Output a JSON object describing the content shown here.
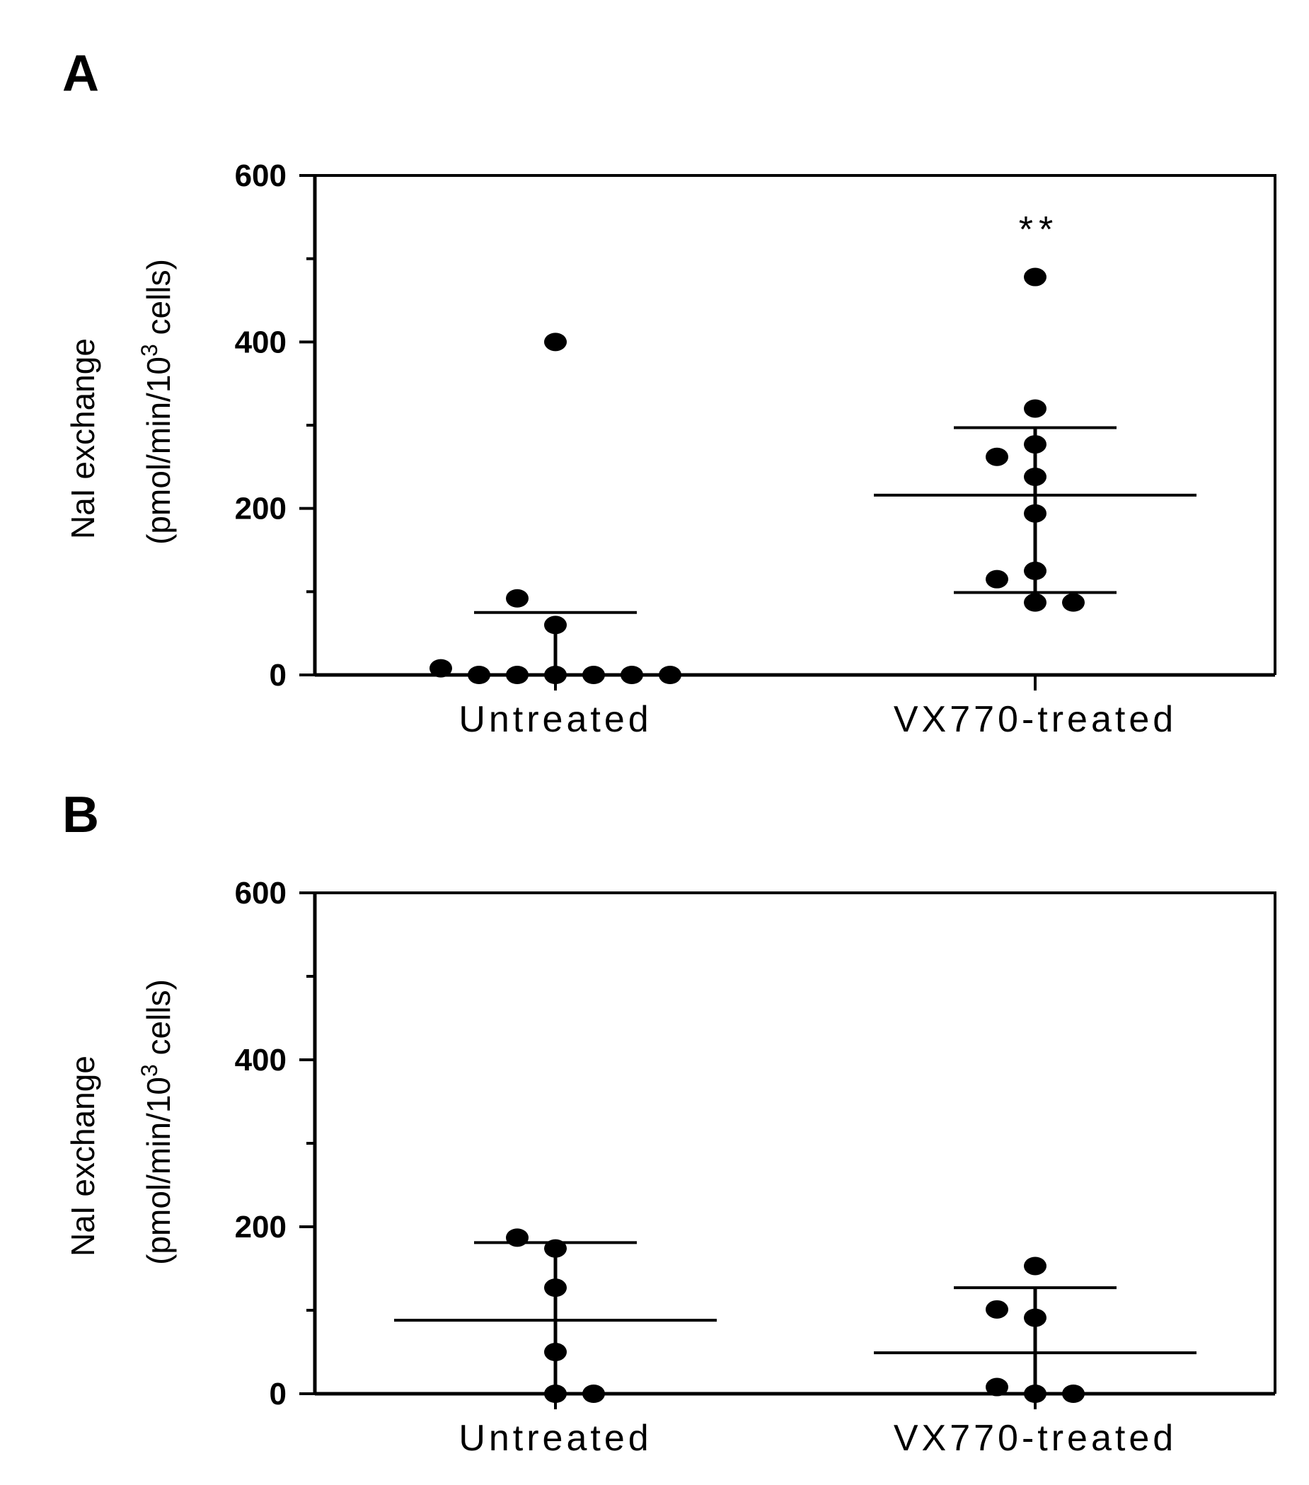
{
  "chart_data": [
    {
      "panel": "A",
      "type": "scatter",
      "title": "",
      "xlabel": "",
      "ylabel": "NaI exchange",
      "ylabel_line2_prefix": "(pmol/min/10",
      "ylabel_line2_superscript": "3",
      "ylabel_line2_suffix": " cells)",
      "ylim": [
        0,
        600
      ],
      "ytick_values": [
        0,
        200,
        400,
        600
      ],
      "ytick_labels": [
        "0",
        "200",
        "400",
        "600"
      ],
      "yminor_ticks": [
        100,
        300,
        500
      ],
      "categories": [
        "Untreated",
        "VX770-treated"
      ],
      "groups": [
        {
          "name": "Untreated",
          "points": [
            {
              "offset": -3,
              "y": 8
            },
            {
              "offset": -2,
              "y": 0
            },
            {
              "offset": -1,
              "y": 0
            },
            {
              "offset": 0,
              "y": 0
            },
            {
              "offset": 1,
              "y": 0
            },
            {
              "offset": 2,
              "y": 0
            },
            {
              "offset": 3,
              "y": 0
            },
            {
              "offset": -1,
              "y": 92
            },
            {
              "offset": 0,
              "y": 60
            },
            {
              "offset": 0,
              "y": 400
            }
          ],
          "mean": 75,
          "error_low": -75,
          "error_high": 75,
          "median": 0,
          "iqr": [
            0,
            60
          ]
        },
        {
          "name": "VX770-treated",
          "points": [
            {
              "offset": 0,
              "y": 478
            },
            {
              "offset": 0,
              "y": 320
            },
            {
              "offset": 0,
              "y": 277
            },
            {
              "offset": -1,
              "y": 262
            },
            {
              "offset": 0,
              "y": 238
            },
            {
              "offset": 0,
              "y": 194
            },
            {
              "offset": 0,
              "y": 125
            },
            {
              "offset": -1,
              "y": 115
            },
            {
              "offset": 0,
              "y": 87
            },
            {
              "offset": 1,
              "y": 87
            }
          ],
          "mean": 216,
          "error_low": 99,
          "error_high": 297,
          "median": 216,
          "iqr": [
            99,
            297
          ]
        }
      ],
      "annotation": "**"
    },
    {
      "panel": "B",
      "type": "scatter",
      "title": "",
      "xlabel": "",
      "ylabel": "NaI exchange",
      "ylabel_line2_prefix": "(pmol/min/10",
      "ylabel_line2_superscript": "3",
      "ylabel_line2_suffix": " cells)",
      "ylim": [
        0,
        600
      ],
      "ytick_values": [
        0,
        200,
        400,
        600
      ],
      "ytick_labels": [
        "0",
        "200",
        "400",
        "600"
      ],
      "yminor_ticks": [
        100,
        300,
        500
      ],
      "categories": [
        "Untreated",
        "VX770-treated"
      ],
      "groups": [
        {
          "name": "Untreated",
          "points": [
            {
              "offset": -1,
              "y": 187
            },
            {
              "offset": 0,
              "y": 174
            },
            {
              "offset": 0,
              "y": 127
            },
            {
              "offset": 0,
              "y": 50
            },
            {
              "offset": 0,
              "y": 0
            },
            {
              "offset": 1,
              "y": 0
            }
          ],
          "mean": 88,
          "error_low": 0,
          "error_high": 181,
          "median": 88,
          "iqr": [
            0,
            181
          ]
        },
        {
          "name": "VX770-treated",
          "points": [
            {
              "offset": 0,
              "y": 153
            },
            {
              "offset": -1,
              "y": 101
            },
            {
              "offset": 0,
              "y": 91
            },
            {
              "offset": -1,
              "y": 8
            },
            {
              "offset": 0,
              "y": 0
            },
            {
              "offset": 1,
              "y": 0
            }
          ],
          "mean": 49,
          "error_low": 0,
          "error_high": 127,
          "median": 49,
          "iqr": [
            0,
            127
          ]
        }
      ],
      "annotation": ""
    }
  ]
}
